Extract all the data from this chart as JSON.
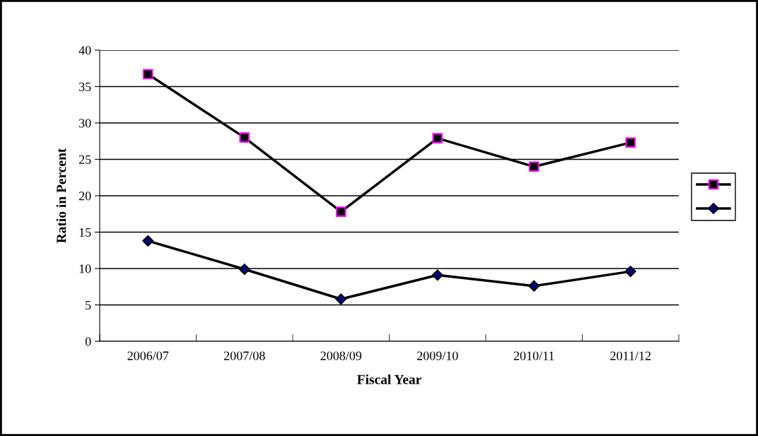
{
  "chart_data": {
    "type": "line",
    "xlabel": "Fiscal Year",
    "ylabel": "Ratio in Percent",
    "categories": [
      "2006/07",
      "2007/08",
      "2008/09",
      "2009/10",
      "2010/11",
      "2011/12"
    ],
    "series": [
      {
        "color": "#000000",
        "marker": "square",
        "values": [
          36.7,
          28.0,
          17.8,
          27.9,
          24.0,
          27.3
        ]
      },
      {
        "color": "#000000",
        "marker": "diamond",
        "values": [
          13.8,
          9.9,
          5.8,
          9.1,
          7.6,
          9.6
        ]
      }
    ],
    "ylim": [
      0,
      40
    ],
    "yticks": [
      0,
      5,
      10,
      15,
      20,
      25,
      30,
      35,
      40
    ],
    "grid": "y",
    "line_style": "solid"
  }
}
